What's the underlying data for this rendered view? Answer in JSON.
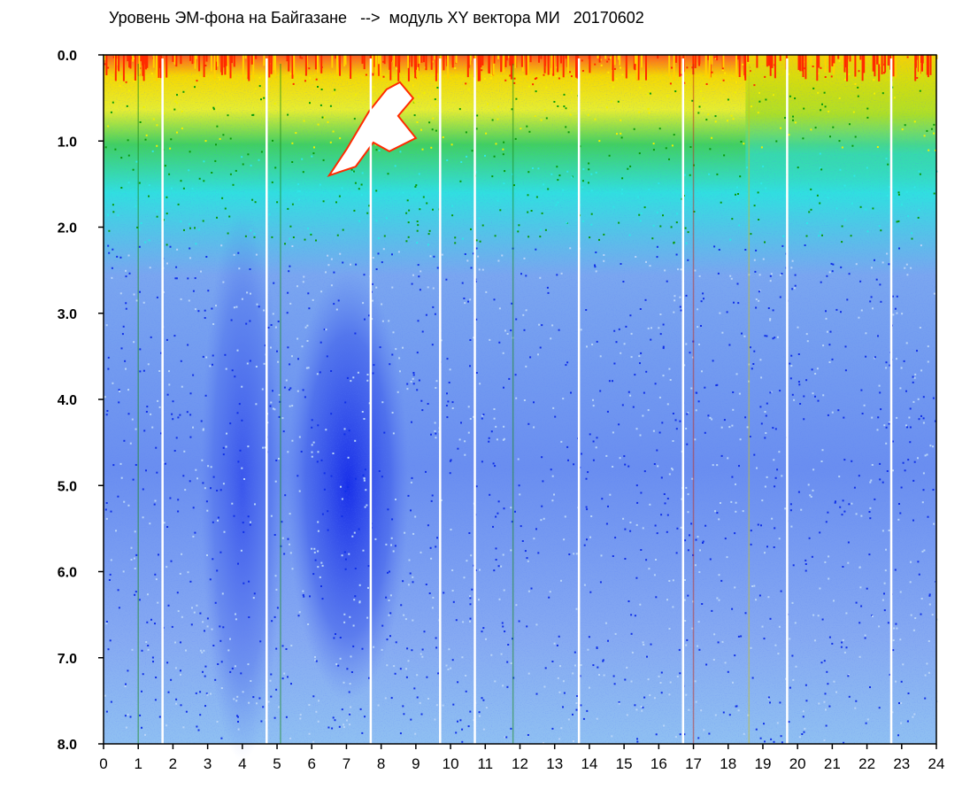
{
  "chart_data": {
    "type": "heatmap",
    "title": "Уровень ЭМ-фона на Байгазане   -->  модуль XY вектора МИ   20170602",
    "xlabel": "",
    "ylabel": "",
    "x_ticks": [
      "0",
      "1",
      "2",
      "3",
      "4",
      "5",
      "6",
      "7",
      "8",
      "9",
      "10",
      "11",
      "12",
      "13",
      "14",
      "15",
      "16",
      "17",
      "18",
      "19",
      "20",
      "21",
      "22",
      "23",
      "24"
    ],
    "y_ticks": [
      "0.0",
      "1.0",
      "2.0",
      "3.0",
      "4.0",
      "5.0",
      "6.0",
      "7.0",
      "8.0"
    ],
    "xlim": [
      0,
      24
    ],
    "ylim": [
      8,
      0
    ],
    "y_inverted": true,
    "grid": false,
    "legend": "none",
    "colormap": [
      "#0000ff",
      "#4d6bf0",
      "#7f96ee",
      "#a7c0f5",
      "#30e6e6",
      "#00a000",
      "#ffff00",
      "#ff0000",
      "#ffffff"
    ],
    "frame_color": "#000000",
    "gap_columns_x": [
      1.7,
      4.7,
      7.7,
      9.7,
      10.7,
      13.7,
      16.7,
      19.7,
      22.7
    ],
    "bright_band": {
      "x": [
        5.3,
        8.8
      ],
      "y": [
        2.5,
        7.5
      ],
      "description_color": "#0000ff"
    },
    "saturation_patch": {
      "x": [
        6.5,
        9.0
      ],
      "y": [
        0.4,
        1.4
      ],
      "color": "#ffffff"
    },
    "band_boundaries": {
      "red_to_yellow_y": 0.3,
      "yellow_to_green_y": 1.0,
      "green_to_cyan_y": 1.9
    }
  }
}
